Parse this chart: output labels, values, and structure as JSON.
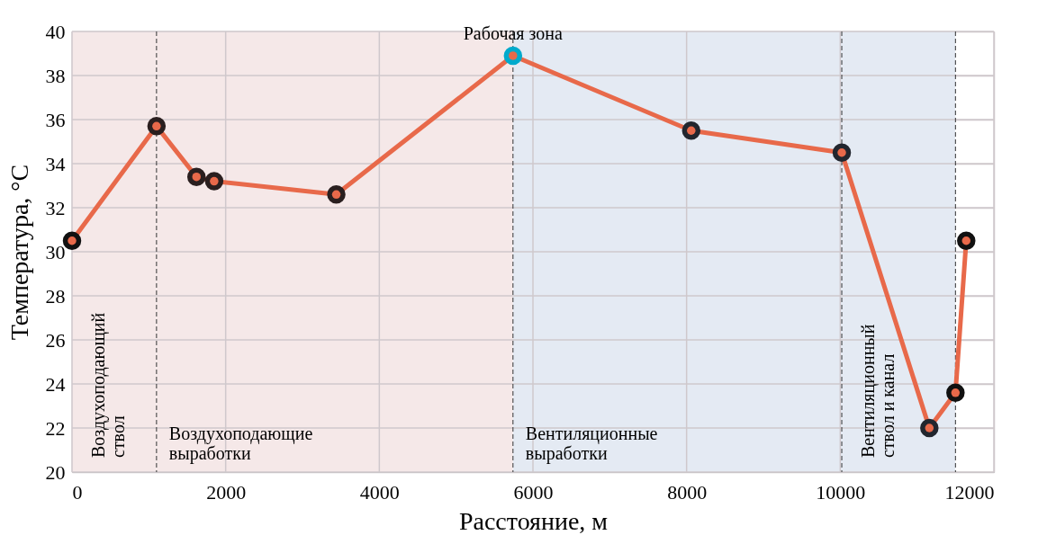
{
  "chart_data": {
    "type": "line",
    "xlabel": "Расстояние, м",
    "ylabel": "Температура, °C",
    "x": [
      0,
      1100,
      1620,
      1850,
      3440,
      5740,
      8060,
      10020,
      11160,
      11500,
      11640
    ],
    "series": [
      {
        "color": "#e8694a",
        "values": [
          30.5,
          35.7,
          33.4,
          33.2,
          32.6,
          38.9,
          35.5,
          34.5,
          22.0,
          23.6,
          30.5
        ],
        "colors": [
          "#111111",
          "#2a1f1f",
          "#2a1f1f",
          "#2a1f1f",
          "#2a1f1f",
          "#00aacc",
          "#22262e",
          "#22262e",
          "#22262e",
          "#111111",
          "#111111"
        ]
      }
    ],
    "xlim": [
      0,
      12000
    ],
    "xticks": [
      0,
      2000,
      4000,
      6000,
      8000,
      10000,
      12000
    ],
    "ylim": [
      20,
      40
    ],
    "yticks": [
      20,
      22,
      24,
      26,
      28,
      30,
      32,
      34,
      36,
      38,
      40
    ],
    "grid": true,
    "legend": false,
    "marker": "circle",
    "line_style": "solid",
    "bands": [
      {
        "axis": "x",
        "from": 0,
        "to": 1100,
        "label": "Воздухоподающий ствол",
        "color": "#f5e8e8"
      },
      {
        "axis": "x",
        "from": 1100,
        "to": 5740,
        "label": "Воздухоподающие выработки",
        "color": "#f5e8e8"
      },
      {
        "axis": "x",
        "from": 5740,
        "to": 10020,
        "label": "Вентиляционные выработки",
        "color": "#e4eaf3"
      },
      {
        "axis": "x",
        "from": 10020,
        "to": 11500,
        "label": "Вентиляционный ствол и канал",
        "color": "#e4eaf3"
      }
    ],
    "ref_lines": [
      {
        "axis": "x",
        "value": 1100,
        "color": "#333333",
        "line_style": "dashed"
      },
      {
        "axis": "x",
        "value": 5740,
        "color": "#333333",
        "line_style": "dashed"
      },
      {
        "axis": "x",
        "value": 10020,
        "color": "#333333",
        "line_style": "dashed"
      },
      {
        "axis": "x",
        "value": 11500,
        "color": "#333333",
        "line_style": "dashed"
      }
    ],
    "annotations": [
      {
        "text": "Рабочая зона",
        "x": 5740,
        "y": 38.9
      }
    ]
  }
}
